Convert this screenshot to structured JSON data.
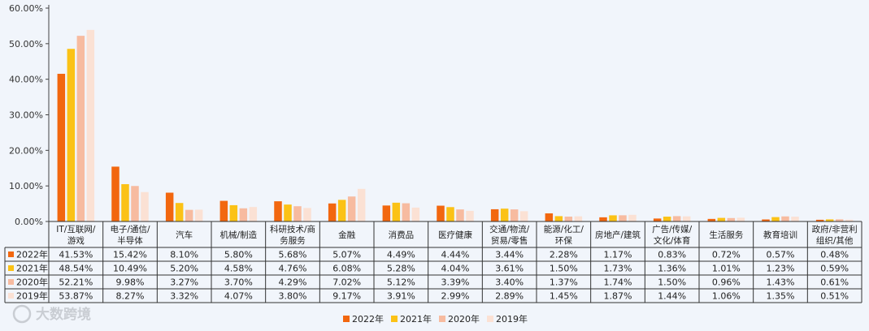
{
  "chart_data": {
    "type": "bar",
    "title": "",
    "xlabel": "",
    "ylabel": "",
    "ylim": [
      0,
      60
    ],
    "y_ticks": [
      "0.00%",
      "10.00%",
      "20.00%",
      "30.00%",
      "40.00%",
      "50.00%",
      "60.00%"
    ],
    "grid": false,
    "legend_position": "bottom-center",
    "categories": [
      [
        "IT/互联网/",
        "游戏"
      ],
      [
        "电子/通信/",
        "半导体"
      ],
      [
        "汽车"
      ],
      [
        "机械/制造"
      ],
      [
        "科研技术/商",
        "务服务"
      ],
      [
        "金融"
      ],
      [
        "消费品"
      ],
      [
        "医疗健康"
      ],
      [
        "交通/物流/",
        "贸易/零售"
      ],
      [
        "能源/化工/",
        "环保"
      ],
      [
        "房地产/建筑"
      ],
      [
        "广告/传媒/",
        "文化/体育"
      ],
      [
        "生活服务"
      ],
      [
        "教育培训"
      ],
      [
        "政府/非营利",
        "组织/其他"
      ]
    ],
    "series": [
      {
        "name": "2022年",
        "color": "#f2670f",
        "values": [
          41.53,
          15.42,
          8.1,
          5.8,
          5.68,
          5.07,
          4.49,
          4.44,
          3.44,
          2.28,
          1.17,
          0.83,
          0.72,
          0.57,
          0.48
        ],
        "labels": [
          "41.53%",
          "15.42%",
          "8.10%",
          "5.80%",
          "5.68%",
          "5.07%",
          "4.49%",
          "4.44%",
          "3.44%",
          "2.28%",
          "1.17%",
          "0.83%",
          "0.72%",
          "0.57%",
          "0.48%"
        ]
      },
      {
        "name": "2021年",
        "color": "#fbc216",
        "values": [
          48.54,
          10.49,
          5.2,
          4.58,
          4.76,
          6.08,
          5.28,
          4.04,
          3.61,
          1.5,
          1.73,
          1.36,
          1.01,
          1.23,
          0.59
        ],
        "labels": [
          "48.54%",
          "10.49%",
          "5.20%",
          "4.58%",
          "4.76%",
          "6.08%",
          "5.28%",
          "4.04%",
          "3.61%",
          "1.50%",
          "1.73%",
          "1.36%",
          "1.01%",
          "1.23%",
          "0.59%"
        ]
      },
      {
        "name": "2020年",
        "color": "#f7bba0",
        "values": [
          52.21,
          9.98,
          3.27,
          3.7,
          4.29,
          7.02,
          5.12,
          3.39,
          3.4,
          1.37,
          1.74,
          1.5,
          0.96,
          1.43,
          0.61
        ],
        "labels": [
          "52.21%",
          "9.98%",
          "3.27%",
          "3.70%",
          "4.29%",
          "7.02%",
          "5.12%",
          "3.39%",
          "3.40%",
          "1.37%",
          "1.74%",
          "1.50%",
          "0.96%",
          "1.43%",
          "0.61%"
        ]
      },
      {
        "name": "2019年",
        "color": "#fbe1d4",
        "values": [
          53.87,
          8.27,
          3.32,
          4.07,
          3.8,
          9.17,
          3.91,
          2.99,
          2.89,
          1.45,
          1.87,
          1.44,
          1.06,
          1.35,
          0.51
        ],
        "labels": [
          "53.87%",
          "8.27%",
          "3.32%",
          "4.07%",
          "3.80%",
          "9.17%",
          "3.91%",
          "2.99%",
          "2.89%",
          "1.45%",
          "1.87%",
          "1.44%",
          "1.06%",
          "1.35%",
          "0.51%"
        ]
      }
    ]
  },
  "watermark": "大数跨境"
}
